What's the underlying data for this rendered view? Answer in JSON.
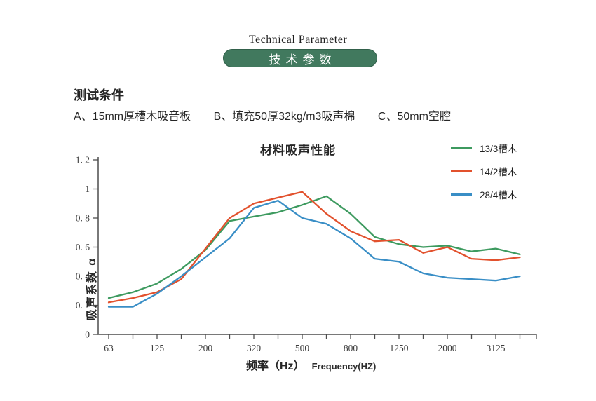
{
  "header": {
    "title_en": "Technical Parameter",
    "badge": "技术参数"
  },
  "conditions": {
    "heading": "测试条件",
    "items": [
      "A、15mm厚槽木吸音板",
      "B、填充50厚32kg/m3吸声棉",
      "C、50mm空腔"
    ]
  },
  "chart_data": {
    "type": "line",
    "title": "材料吸声性能",
    "xlabel_zh": "频率（Hz）",
    "xlabel_en": "Frequency(HZ)",
    "ylabel": "吸声系数 α",
    "ylim": [
      0,
      1.2
    ],
    "grid": false,
    "legend_position": "top-right",
    "ytick_labels": [
      "0",
      "0. 2",
      "0. 4",
      "0. 6",
      "0. 8",
      "1",
      "1. 2"
    ],
    "x_labeled_ticks": [
      "63",
      "125",
      "200",
      "320",
      "500",
      "800",
      "1250",
      "2000",
      "3125"
    ],
    "x": [
      63,
      80,
      125,
      160,
      200,
      250,
      320,
      400,
      500,
      630,
      800,
      1000,
      1250,
      1600,
      2000,
      2500,
      3125,
      4000
    ],
    "series": [
      {
        "name": "13/3槽木",
        "color": "#3d9a5f",
        "values": [
          0.25,
          0.29,
          0.35,
          0.45,
          0.58,
          0.78,
          0.81,
          0.84,
          0.89,
          0.95,
          0.83,
          0.67,
          0.62,
          0.6,
          0.61,
          0.57,
          0.59,
          0.55
        ]
      },
      {
        "name": "14/2槽木",
        "color": "#e2512d",
        "values": [
          0.22,
          0.25,
          0.29,
          0.38,
          0.59,
          0.8,
          0.9,
          0.94,
          0.98,
          0.83,
          0.71,
          0.64,
          0.65,
          0.56,
          0.6,
          0.52,
          0.51,
          0.53
        ]
      },
      {
        "name": "28/4槽木",
        "color": "#398ec6",
        "values": [
          0.19,
          0.19,
          0.28,
          0.4,
          0.53,
          0.66,
          0.87,
          0.92,
          0.8,
          0.76,
          0.66,
          0.52,
          0.5,
          0.42,
          0.39,
          0.38,
          0.37,
          0.4
        ]
      }
    ]
  }
}
